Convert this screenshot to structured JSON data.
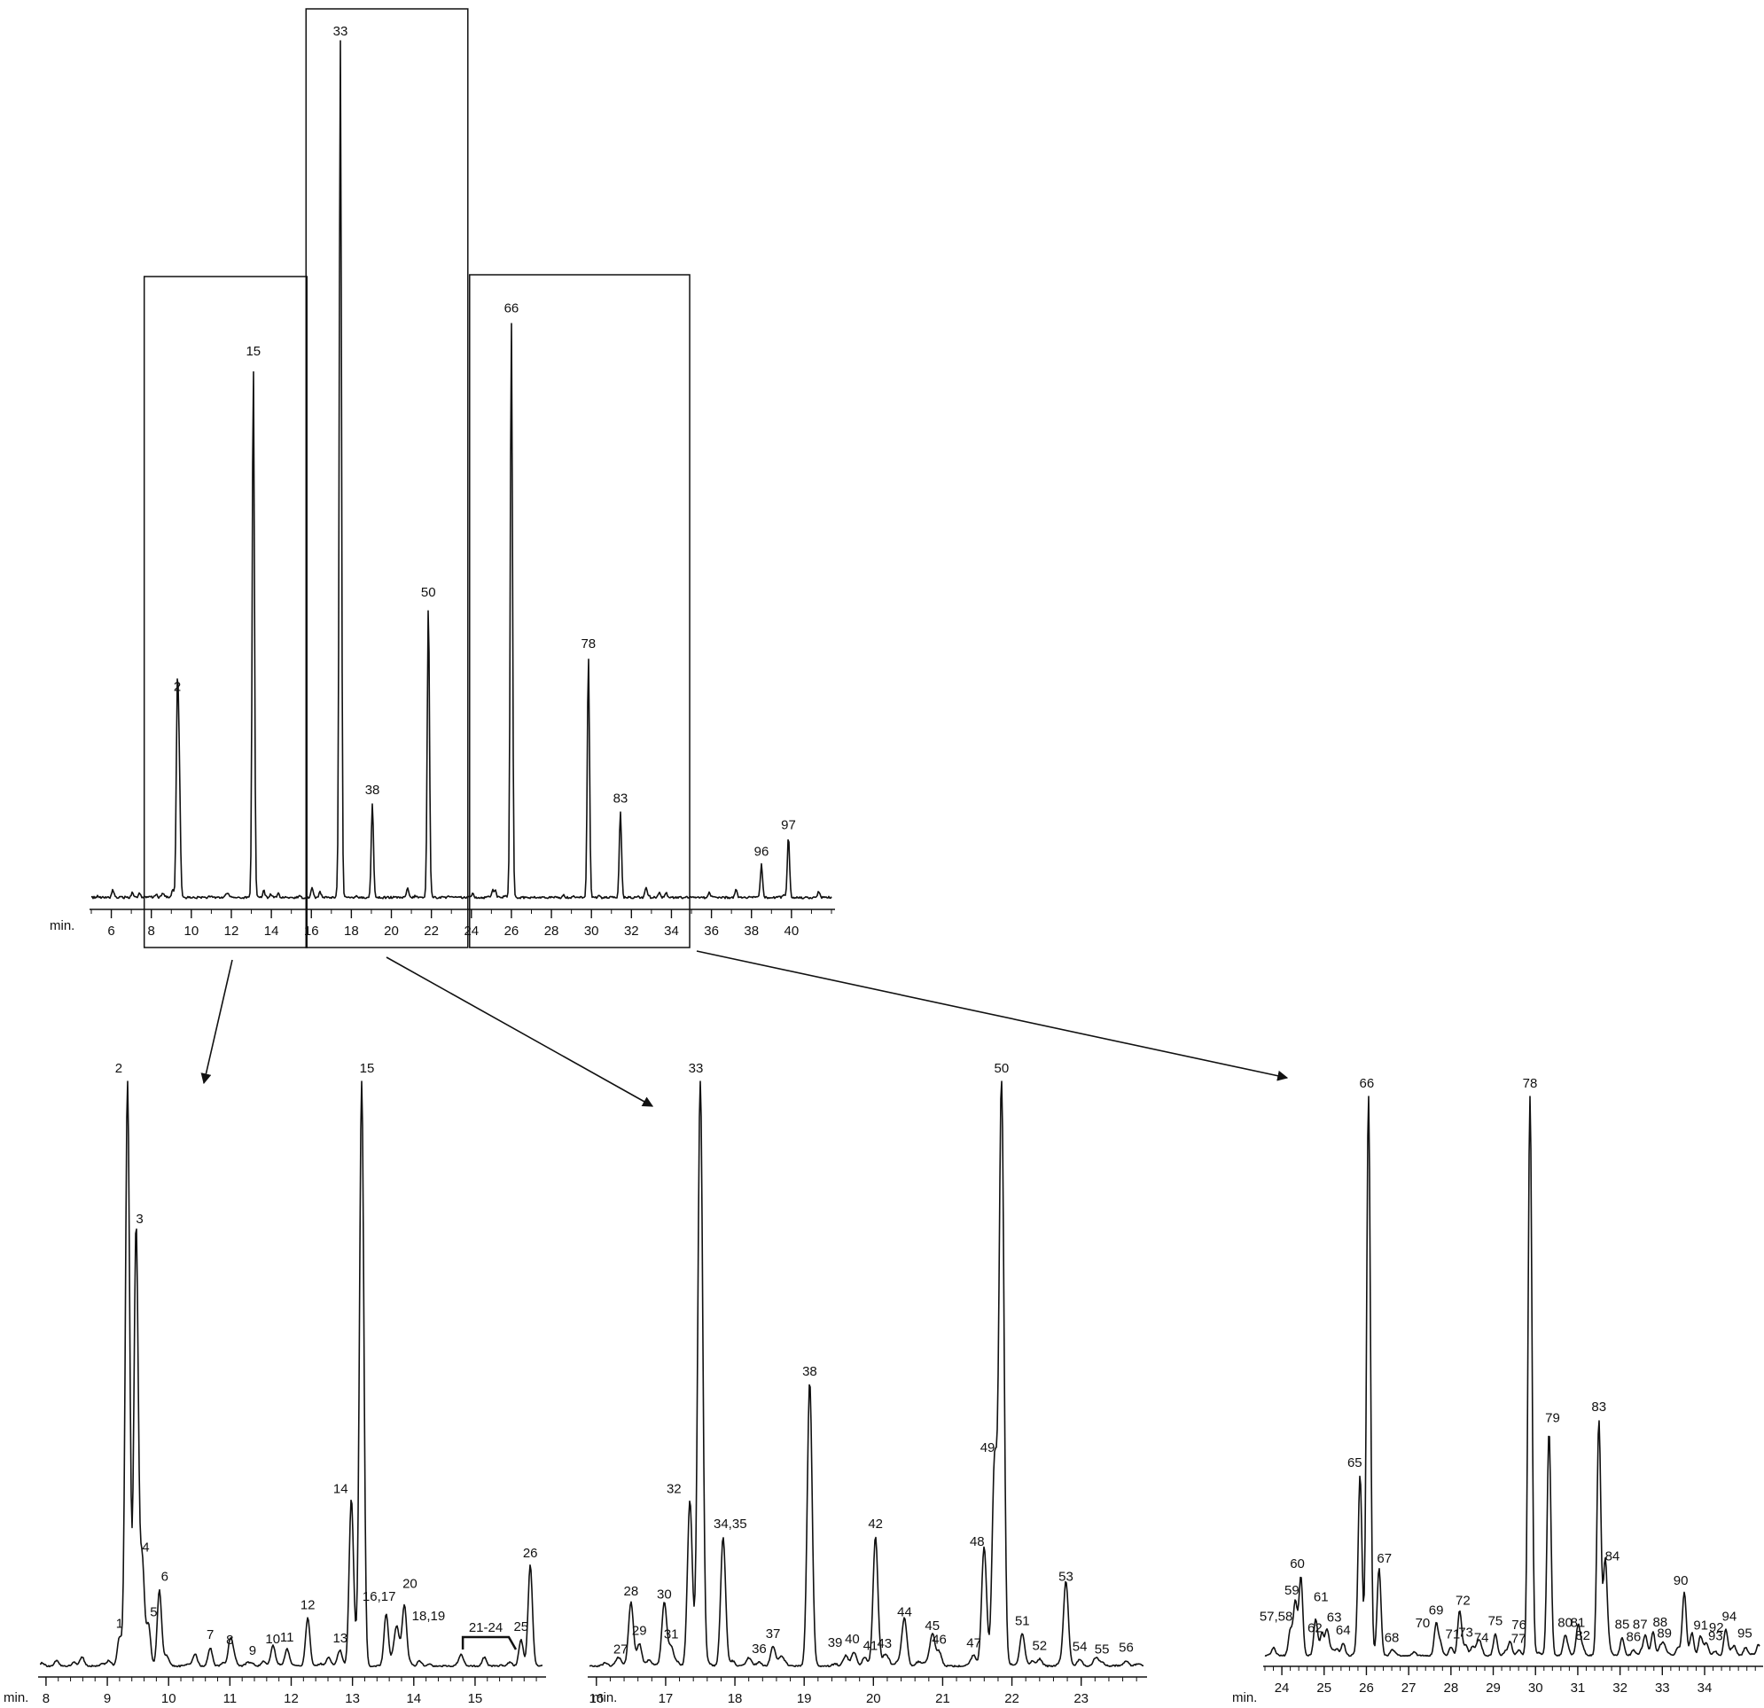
{
  "chart_data": [
    {
      "id": "overview",
      "type": "line",
      "axis_prefix": "min.",
      "xlim": [
        5,
        42
      ],
      "xticks": [
        6,
        8,
        10,
        12,
        14,
        16,
        18,
        20,
        22,
        24,
        26,
        28,
        30,
        32,
        34,
        36,
        38,
        40
      ],
      "ylim": [
        0,
        100
      ],
      "peaks": [
        {
          "label": "2",
          "x": 9.3,
          "y": 23
        },
        {
          "label": "",
          "x": 9.4,
          "y": 13
        },
        {
          "label": "15",
          "x": 13.1,
          "y": 62
        },
        {
          "label": "33",
          "x": 17.45,
          "y": 100
        },
        {
          "label": "38",
          "x": 19.05,
          "y": 11
        },
        {
          "label": "50",
          "x": 21.85,
          "y": 34
        },
        {
          "label": "66",
          "x": 26.0,
          "y": 67
        },
        {
          "label": "78",
          "x": 29.85,
          "y": 28
        },
        {
          "label": "83",
          "x": 31.45,
          "y": 10
        },
        {
          "label": "96",
          "x": 38.5,
          "y": 3.8
        },
        {
          "label": "97",
          "x": 39.85,
          "y": 6.9
        }
      ],
      "boxes": [
        {
          "from": 8,
          "to": 16
        },
        {
          "from": 16,
          "to": 24
        },
        {
          "from": 24,
          "to": 35
        }
      ]
    },
    {
      "id": "zoom-8-16",
      "type": "line",
      "axis_prefix": "min.",
      "xlim": [
        7.9,
        16.1
      ],
      "xticks": [
        8,
        9,
        10,
        11,
        12,
        13,
        14,
        15
      ],
      "ylim": [
        0,
        100
      ],
      "peaks": [
        {
          "label": "1",
          "x": 9.2,
          "y": 5.0
        },
        {
          "label": "2",
          "x": 9.33,
          "y": 100
        },
        {
          "label": "3",
          "x": 9.47,
          "y": 74
        },
        {
          "label": "4",
          "x": 9.57,
          "y": 18
        },
        {
          "label": "5",
          "x": 9.67,
          "y": 7.0
        },
        {
          "label": "6",
          "x": 9.85,
          "y": 13
        },
        {
          "label": "7",
          "x": 10.68,
          "y": 3.1
        },
        {
          "label": "8",
          "x": 11.0,
          "y": 2.2
        },
        {
          "label": "9",
          "x": 11.37,
          "y": 0.4
        },
        {
          "label": "10",
          "x": 11.7,
          "y": 2.4
        },
        {
          "label": "11",
          "x": 11.93,
          "y": 2.7
        },
        {
          "label": "12",
          "x": 12.27,
          "y": 8.2
        },
        {
          "label": "13",
          "x": 12.8,
          "y": 2.5
        },
        {
          "label": "14",
          "x": 12.98,
          "y": 28
        },
        {
          "label": "15",
          "x": 13.15,
          "y": 100
        },
        {
          "label": "16,17",
          "x": 13.55,
          "y": 9.0
        },
        {
          "label": "18,19",
          "x": 13.72,
          "y": 6.0
        },
        {
          "label": "20",
          "x": 13.85,
          "y": 8.5
        },
        {
          "label": "21-24",
          "x": 15.15,
          "y": 1.5
        },
        {
          "label": "25",
          "x": 15.75,
          "y": 4.5
        },
        {
          "label": "26",
          "x": 15.9,
          "y": 17
        }
      ]
    },
    {
      "id": "zoom-16-24",
      "type": "line",
      "axis_prefix": "min.",
      "xlim": [
        15.9,
        23.9
      ],
      "xticks": [
        16,
        17,
        18,
        19,
        20,
        21,
        22,
        23
      ],
      "ylim": [
        0,
        100
      ],
      "peaks": [
        {
          "label": "27",
          "x": 16.35,
          "y": 0.6
        },
        {
          "label": "28",
          "x": 16.5,
          "y": 10.5
        },
        {
          "label": "29",
          "x": 16.62,
          "y": 3.8
        },
        {
          "label": "30",
          "x": 16.98,
          "y": 10
        },
        {
          "label": "31",
          "x": 17.08,
          "y": 3.2
        },
        {
          "label": "32",
          "x": 17.35,
          "y": 28
        },
        {
          "label": "33",
          "x": 17.5,
          "y": 100
        },
        {
          "label": "34,35",
          "x": 17.83,
          "y": 22
        },
        {
          "label": "36",
          "x": 18.35,
          "y": 0.7
        },
        {
          "label": "37",
          "x": 18.55,
          "y": 3.3
        },
        {
          "label": "38",
          "x": 19.08,
          "y": 48
        },
        {
          "label": "39",
          "x": 19.6,
          "y": 1.8
        },
        {
          "label": "40",
          "x": 19.72,
          "y": 2.4
        },
        {
          "label": "41",
          "x": 19.88,
          "y": 1.2
        },
        {
          "label": "42",
          "x": 20.03,
          "y": 22
        },
        {
          "label": "43",
          "x": 20.16,
          "y": 1.6
        },
        {
          "label": "44",
          "x": 20.45,
          "y": 7.0
        },
        {
          "label": "45",
          "x": 20.85,
          "y": 4.6
        },
        {
          "label": "46",
          "x": 20.95,
          "y": 2.3
        },
        {
          "label": "47",
          "x": 21.45,
          "y": 1.7
        },
        {
          "label": "48",
          "x": 21.6,
          "y": 19
        },
        {
          "label": "49",
          "x": 21.75,
          "y": 35
        },
        {
          "label": "50",
          "x": 21.85,
          "y": 100
        },
        {
          "label": "51",
          "x": 22.15,
          "y": 5.5
        },
        {
          "label": "52",
          "x": 22.4,
          "y": 1.2
        },
        {
          "label": "53",
          "x": 22.78,
          "y": 13
        },
        {
          "label": "54",
          "x": 22.98,
          "y": 1.1
        },
        {
          "label": "55",
          "x": 23.3,
          "y": 0.6
        },
        {
          "label": "56",
          "x": 23.65,
          "y": 0.9
        }
      ]
    },
    {
      "id": "zoom-24-35",
      "type": "line",
      "axis_prefix": "min.",
      "xlim": [
        23.6,
        35.3
      ],
      "xticks": [
        24,
        25,
        26,
        27,
        28,
        29,
        30,
        31,
        32,
        33,
        34
      ],
      "ylim": [
        0,
        100
      ],
      "peaks": [
        {
          "label": "57,58",
          "x": 24.2,
          "y": 4.6
        },
        {
          "label": "59",
          "x": 24.32,
          "y": 9.0
        },
        {
          "label": "60",
          "x": 24.45,
          "y": 14
        },
        {
          "label": "61",
          "x": 24.8,
          "y": 6.5
        },
        {
          "label": "62",
          "x": 24.95,
          "y": 3.5
        },
        {
          "label": "63",
          "x": 25.07,
          "y": 4.5
        },
        {
          "label": "64",
          "x": 25.45,
          "y": 2.2
        },
        {
          "label": "65",
          "x": 25.85,
          "y": 32
        },
        {
          "label": "66",
          "x": 26.05,
          "y": 100
        },
        {
          "label": "67",
          "x": 26.3,
          "y": 15
        },
        {
          "label": "68",
          "x": 26.6,
          "y": 0.8
        },
        {
          "label": "69",
          "x": 27.65,
          "y": 5.7
        },
        {
          "label": "70",
          "x": 27.75,
          "y": 2.2
        },
        {
          "label": "71",
          "x": 28.0,
          "y": 1.5
        },
        {
          "label": "72",
          "x": 28.2,
          "y": 6.2
        },
        {
          "label": "73",
          "x": 28.35,
          "y": 1.8
        },
        {
          "label": "74",
          "x": 28.72,
          "y": 0.8
        },
        {
          "label": "75",
          "x": 29.05,
          "y": 3.8
        },
        {
          "label": "76",
          "x": 29.4,
          "y": 2.5
        },
        {
          "label": "77",
          "x": 29.6,
          "y": 0.7
        },
        {
          "label": "78",
          "x": 29.87,
          "y": 100
        },
        {
          "label": "79",
          "x": 30.32,
          "y": 40
        },
        {
          "label": "80",
          "x": 30.7,
          "y": 3.5
        },
        {
          "label": "81",
          "x": 31.0,
          "y": 3.5
        },
        {
          "label": "82",
          "x": 31.12,
          "y": 1.2
        },
        {
          "label": "83",
          "x": 31.5,
          "y": 42
        },
        {
          "label": "84",
          "x": 31.65,
          "y": 16
        },
        {
          "label": "85",
          "x": 32.05,
          "y": 3.2
        },
        {
          "label": "86",
          "x": 32.32,
          "y": 1.0
        },
        {
          "label": "87",
          "x": 32.6,
          "y": 3.5
        },
        {
          "label": "88",
          "x": 32.78,
          "y": 4.2
        },
        {
          "label": "89",
          "x": 33.05,
          "y": 1.6
        },
        {
          "label": "90",
          "x": 33.52,
          "y": 11
        },
        {
          "label": "91",
          "x": 33.7,
          "y": 4.0
        },
        {
          "label": "92",
          "x": 33.9,
          "y": 3.3
        },
        {
          "label": "93",
          "x": 34.05,
          "y": 2.1
        },
        {
          "label": "94",
          "x": 34.5,
          "y": 4.6
        },
        {
          "label": "95",
          "x": 34.7,
          "y": 1.6
        }
      ]
    }
  ]
}
